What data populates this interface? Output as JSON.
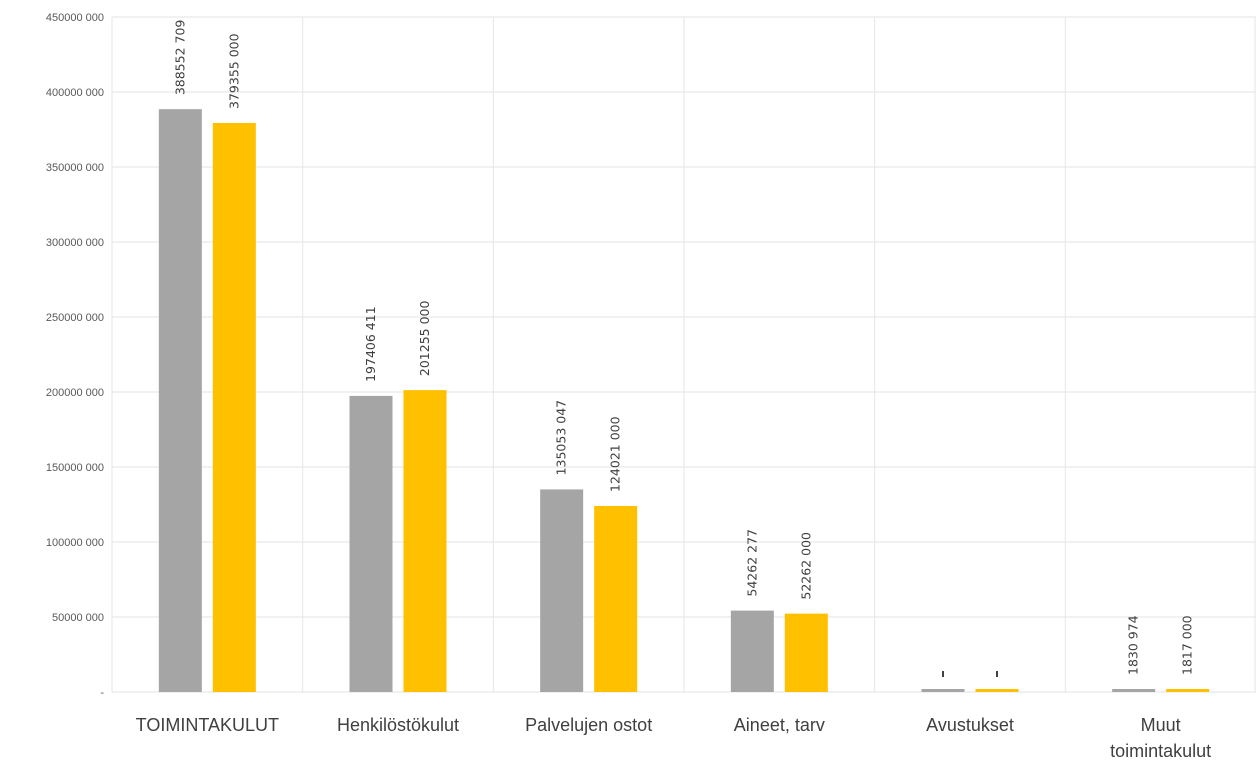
{
  "chart_data": {
    "type": "bar",
    "categories": [
      [
        "TOIMINTAKULUT"
      ],
      [
        "Henkilöstökulut"
      ],
      [
        "Palvelujen ostot"
      ],
      [
        "Aineet, tarv"
      ],
      [
        "Avustukset"
      ],
      [
        "Muut",
        "toimintakulut"
      ]
    ],
    "series": [
      {
        "color": "#a5a5a5",
        "values": [
          388552709,
          197406411,
          135053047,
          54262277,
          0,
          1830974
        ],
        "labels": [
          "388552 709",
          "197406 411",
          "135053 047",
          "54262 277",
          "",
          "1830 974"
        ]
      },
      {
        "color": "#ffc000",
        "values": [
          379355000,
          201255000,
          124021000,
          52262000,
          0,
          1817000
        ],
        "labels": [
          "379355 000",
          "201255 000",
          "124021 000",
          "52262 000",
          "",
          "1817 000"
        ]
      }
    ],
    "ylim": [
      0,
      450000000
    ],
    "yticks": [
      {
        "value": 450000000,
        "label": "450000 000"
      },
      {
        "value": 400000000,
        "label": "400000 000"
      },
      {
        "value": 350000000,
        "label": "350000 000"
      },
      {
        "value": 300000000,
        "label": "300000 000"
      },
      {
        "value": 250000000,
        "label": "250000 000"
      },
      {
        "value": 200000000,
        "label": "200000 000"
      },
      {
        "value": 150000000,
        "label": "150000 000"
      },
      {
        "value": 100000000,
        "label": "100000 000"
      },
      {
        "value": 50000000,
        "label": "50000 000"
      },
      {
        "value": 0,
        "label": "-"
      }
    ],
    "grid": true,
    "legend": "none"
  }
}
